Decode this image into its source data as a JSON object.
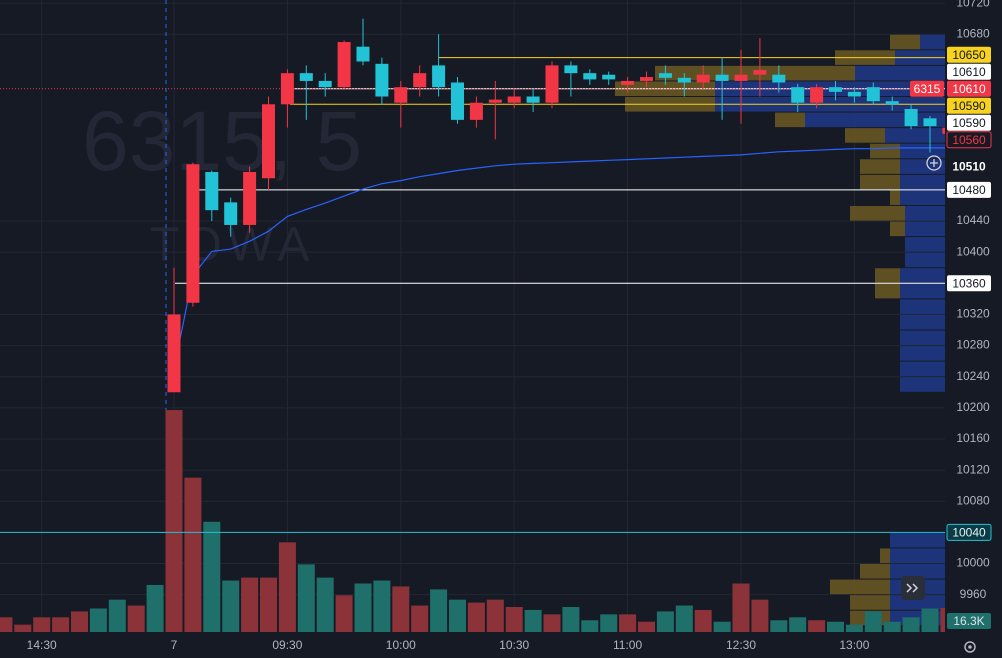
{
  "chart_data": {
    "type": "candlestick",
    "symbol": "6315, 5",
    "name": "TOWA",
    "categories": [
      null,
      null,
      "14:30",
      null,
      null,
      null,
      null,
      null,
      null,
      "7",
      null,
      null,
      null,
      null,
      null,
      "09:30",
      null,
      null,
      null,
      null,
      null,
      "10:00",
      null,
      null,
      null,
      null,
      null,
      "10:30",
      null,
      null,
      null,
      null,
      null,
      "11:00",
      null,
      null,
      null,
      null,
      null,
      "12:30",
      null,
      null,
      null,
      null,
      null,
      "13:00",
      null,
      null,
      null,
      null,
      null
    ],
    "open": [
      null,
      null,
      null,
      null,
      null,
      null,
      null,
      null,
      null,
      10220,
      10335,
      10503,
      10464,
      10435,
      10495,
      10590,
      10630,
      10620,
      10612,
      10664,
      10642,
      10592,
      10612,
      10640,
      10618,
      10570,
      10592,
      10592,
      10600,
      10592,
      10640,
      10630,
      10628,
      10615,
      10620,
      10630,
      10624,
      10618,
      10628,
      10620,
      10628,
      10628,
      10612,
      10592,
      10612,
      10606,
      10612,
      10594,
      10584,
      10572,
      10552
    ],
    "high": [
      null,
      null,
      null,
      null,
      null,
      null,
      null,
      null,
      null,
      10380,
      10515,
      10505,
      10470,
      10510,
      10600,
      10635,
      10640,
      10630,
      10672,
      10700,
      10650,
      10620,
      10640,
      10680,
      10625,
      10600,
      10620,
      10610,
      10610,
      10645,
      10645,
      10635,
      10632,
      10625,
      10632,
      10640,
      10630,
      10640,
      10650,
      10660,
      10675,
      10640,
      10616,
      10616,
      10620,
      10612,
      10618,
      10600,
      10590,
      10575,
      10562
    ],
    "low": [
      null,
      null,
      null,
      null,
      null,
      null,
      null,
      null,
      null,
      10220,
      10330,
      10440,
      10420,
      10425,
      10480,
      10560,
      10570,
      10600,
      10610,
      10640,
      10590,
      10560,
      10600,
      10600,
      10565,
      10560,
      10545,
      10585,
      10580,
      10585,
      10600,
      10615,
      10615,
      10605,
      10612,
      10615,
      10600,
      10610,
      10570,
      10565,
      10600,
      10605,
      10580,
      10585,
      10595,
      10592,
      10590,
      10582,
      10558,
      10528,
      10548
    ],
    "close": [
      null,
      null,
      null,
      null,
      null,
      null,
      null,
      null,
      null,
      10320,
      10513,
      10454,
      10435,
      10503,
      10590,
      10630,
      10620,
      10612,
      10670,
      10645,
      10600,
      10612,
      10630,
      10612,
      10570,
      10592,
      10596,
      10600,
      10592,
      10640,
      10630,
      10622,
      10622,
      10620,
      10625,
      10624,
      10618,
      10628,
      10620,
      10628,
      10634,
      10618,
      10592,
      10612,
      10606,
      10600,
      10594,
      10590,
      10562,
      10562,
      10560
    ],
    "up_color": "#f23645",
    "down_color": "#22c3d6",
    "ylim": [
      9912,
      10724
    ],
    "yticks": [
      10720,
      10680,
      10440,
      10400,
      10320,
      10280,
      10240,
      10200,
      10160,
      10120,
      10080,
      10000,
      9960
    ],
    "grid": true,
    "volume": {
      "values": [
        10,
        5,
        10,
        10,
        14,
        16,
        22,
        18,
        32,
        151,
        105,
        75,
        35,
        37,
        37,
        61,
        46,
        37,
        25,
        33,
        35,
        31,
        18,
        29,
        22,
        20,
        22,
        17,
        15,
        12,
        17,
        8,
        12,
        12,
        7,
        14,
        18,
        15,
        7,
        33,
        22,
        8,
        10,
        8,
        7,
        5,
        14,
        7,
        10,
        16,
        16.3
      ],
      "colors": [
        "#8c3339",
        "#8c3339",
        "#8c3339",
        "#8c3339",
        "#8c3339",
        "#1f6f6b",
        "#1f6f6b",
        "#8c3339",
        "#1f6f6b",
        "#8c3339",
        "#8c3339",
        "#1f6f6b",
        "#1f6f6b",
        "#8c3339",
        "#8c3339",
        "#8c3339",
        "#1f6f6b",
        "#1f6f6b",
        "#8c3339",
        "#1f6f6b",
        "#1f6f6b",
        "#8c3339",
        "#8c3339",
        "#1f6f6b",
        "#1f6f6b",
        "#8c3339",
        "#8c3339",
        "#8c3339",
        "#1f6f6b",
        "#8c3339",
        "#1f6f6b",
        "#1f6f6b",
        "#1f6f6b",
        "#8c3339",
        "#8c3339",
        "#1f6f6b",
        "#1f6f6b",
        "#8c3339",
        "#1f6f6b",
        "#8c3339",
        "#8c3339",
        "#1f6f6b",
        "#1f6f6b",
        "#8c3339",
        "#1f6f6b",
        "#1f6f6b",
        "#1f6f6b",
        "#1f6f6b",
        "#1f6f6b",
        "#1f6f6b",
        "#8c3339"
      ],
      "ylim": [
        0,
        430
      ],
      "label": "16.3K"
    },
    "vwap": {
      "color": "#2962ff",
      "values": [
        null,
        null,
        null,
        null,
        null,
        null,
        null,
        null,
        null,
        10250,
        10370,
        10401,
        10404,
        10414,
        10427,
        10446,
        10455,
        10463,
        10472,
        10481,
        10488,
        10492,
        10497,
        10501,
        10505,
        10508,
        10511,
        10513,
        10514,
        10515,
        10516,
        10517,
        10518,
        10519,
        10520,
        10521,
        10522,
        10523,
        10524,
        10525,
        10527,
        10529,
        10530,
        10531,
        10532,
        10533,
        10533,
        10534,
        10534,
        10534,
        10534
      ]
    },
    "profile": {
      "prices": [
        10670,
        10650,
        10630,
        10610,
        10590,
        10570,
        10550,
        10530,
        10510,
        10490,
        10470,
        10450,
        10430,
        10410,
        10390,
        10370,
        10350,
        10330,
        10310,
        10290,
        10270,
        10250,
        10230,
        10030,
        10010,
        9990,
        9970,
        9950,
        9930
      ],
      "near": [
        25,
        50,
        90,
        230,
        230,
        140,
        60,
        45,
        45,
        45,
        45,
        40,
        40,
        40,
        40,
        45,
        45,
        45,
        45,
        45,
        45,
        45,
        45,
        55,
        55,
        55,
        55,
        55,
        55
      ],
      "far": [
        30,
        60,
        200,
        100,
        90,
        30,
        40,
        30,
        40,
        40,
        10,
        55,
        15,
        0,
        0,
        25,
        25,
        0,
        0,
        0,
        0,
        0,
        0,
        0,
        10,
        30,
        60,
        40,
        40
      ],
      "near_color": "#1e3a8a",
      "far_color": "#6b5a22"
    },
    "symbol_badge": "6315",
    "levels": [
      {
        "value": 10650,
        "bg": "#f7d21f",
        "fg": "#131722",
        "line": "#f7d21f"
      },
      {
        "value": 10610,
        "bg": "#ffffff",
        "fg": "#131722",
        "line": "#ffffff"
      },
      {
        "value": 10610,
        "bg": "#f23645",
        "fg": "#ffffff",
        "line": "#f23645"
      },
      {
        "value": 10590,
        "bg": "#f7d21f",
        "fg": "#131722",
        "line": "#f7d21f"
      },
      {
        "value": 10590,
        "bg": "#ffffff",
        "fg": "#131722",
        "line": null
      },
      {
        "value": 10560,
        "bg": "#161a25",
        "fg": "#f23645",
        "line": null
      },
      {
        "value": 10510,
        "bg": "#161a25",
        "fg": "#ffffff",
        "line": null
      },
      {
        "value": 10480,
        "bg": "#ffffff",
        "fg": "#131722",
        "line": "#ffffff"
      },
      {
        "value": 10360,
        "bg": "#ffffff",
        "fg": "#131722",
        "line": "#ffffff"
      },
      {
        "value": 10040,
        "bg": "#0d3b44",
        "fg": "#e0f7fa",
        "line": "#22c3d6"
      }
    ]
  }
}
